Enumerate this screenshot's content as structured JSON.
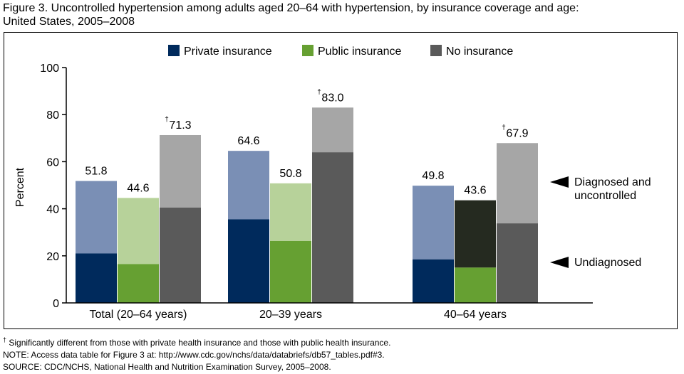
{
  "title": {
    "line1": "Figure 3. Uncontrolled hypertension among adults aged 20–64 with hypertension, by insurance coverage and age:",
    "line2": "United States, 2005–2008"
  },
  "notes": {
    "dagger": "†",
    "footnote": " Significantly different from those with private health insurance and those with public health insurance.",
    "note": "NOTE: Access data table for Figure 3 at: http://www.cdc.gov/nchs/data/databriefs/db57_tables.pdf#3.",
    "source": "SOURCE: CDC/NCHS, National Health and Nutrition Examination Survey, 2005–2008."
  },
  "chart_data": {
    "type": "bar",
    "stacked": true,
    "title": "Uncontrolled hypertension among adults aged 20–64 with hypertension, by insurance coverage and age",
    "ylabel": "Percent",
    "xlabel": "",
    "ylim": [
      0,
      100
    ],
    "yticks": [
      0,
      20,
      40,
      60,
      80,
      100
    ],
    "categories": [
      "Total (20–64 years)",
      "20–39 years",
      "40–64 years"
    ],
    "legend": [
      {
        "name": "Private insurance",
        "color": "#002a5c"
      },
      {
        "name": "Public insurance",
        "color": "#66a032"
      },
      {
        "name": "No insurance",
        "color": "#5a5a5a"
      }
    ],
    "series": [
      {
        "name": "Private insurance",
        "totals": [
          51.8,
          64.6,
          49.8
        ],
        "undiagnosed": [
          21,
          35.5,
          18.5
        ],
        "dark_colors": [
          "#002a5c",
          "#002a5c",
          "#002a5c"
        ],
        "light_colors": [
          "#7a8fb5",
          "#7a8fb5",
          "#7a8fb5"
        ],
        "dagger": [
          false,
          false,
          false
        ]
      },
      {
        "name": "Public insurance",
        "totals": [
          44.6,
          50.8,
          43.6
        ],
        "undiagnosed": [
          16.5,
          26.3,
          15
        ],
        "dark_colors": [
          "#66a032",
          "#66a032",
          "#66a032"
        ],
        "light_colors": [
          "#b7d29a",
          "#b7d29a",
          "#252a20"
        ],
        "dagger": [
          false,
          false,
          false
        ]
      },
      {
        "name": "No insurance",
        "totals": [
          71.3,
          83.0,
          67.9
        ],
        "undiagnosed": [
          40.5,
          64,
          33.8
        ],
        "dark_colors": [
          "#5a5a5a",
          "#5a5a5a",
          "#5a5a5a"
        ],
        "light_colors": [
          "#a6a6a6",
          "#a6a6a6",
          "#a6a6a6"
        ],
        "dagger": [
          true,
          true,
          true
        ]
      }
    ],
    "value_labels": [
      [
        "51.8",
        "44.6",
        "71.3"
      ],
      [
        "64.6",
        "50.8",
        "83.0"
      ],
      [
        "49.8",
        "43.6",
        "67.9"
      ]
    ],
    "annotations": {
      "diagnosed_line1": "Diagnosed and",
      "diagnosed_line2": "uncontrolled",
      "undiagnosed": "Undiagnosed",
      "dagger": "†"
    }
  }
}
